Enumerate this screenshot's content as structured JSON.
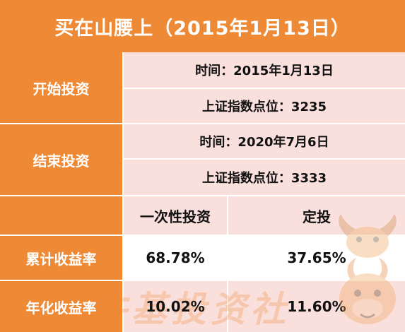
{
  "title": "买在山腰上（2015年1月13日）",
  "start": {
    "label": "开始投资",
    "time": "时间：2015年1月13日",
    "index": "上证指数点位：3235"
  },
  "end": {
    "label": "结束投资",
    "time": "时间：2020年7月6日",
    "index": "上证指数点位：3333"
  },
  "columns": {
    "lump_sum": "一次性投资",
    "dca": "定投"
  },
  "rows": [
    {
      "label": "累计收益率",
      "lump_sum": "68.78%",
      "dca": "37.65%"
    },
    {
      "label": "年化收益率",
      "lump_sum": "10.02%",
      "dca": "11.60%"
    }
  ],
  "watermark": "牛基投资社",
  "colors": {
    "orange": "#ee8a36",
    "pink": "#fae0dc",
    "white": "#ffffff"
  },
  "mascot_icon": "ox-mascot-icon"
}
